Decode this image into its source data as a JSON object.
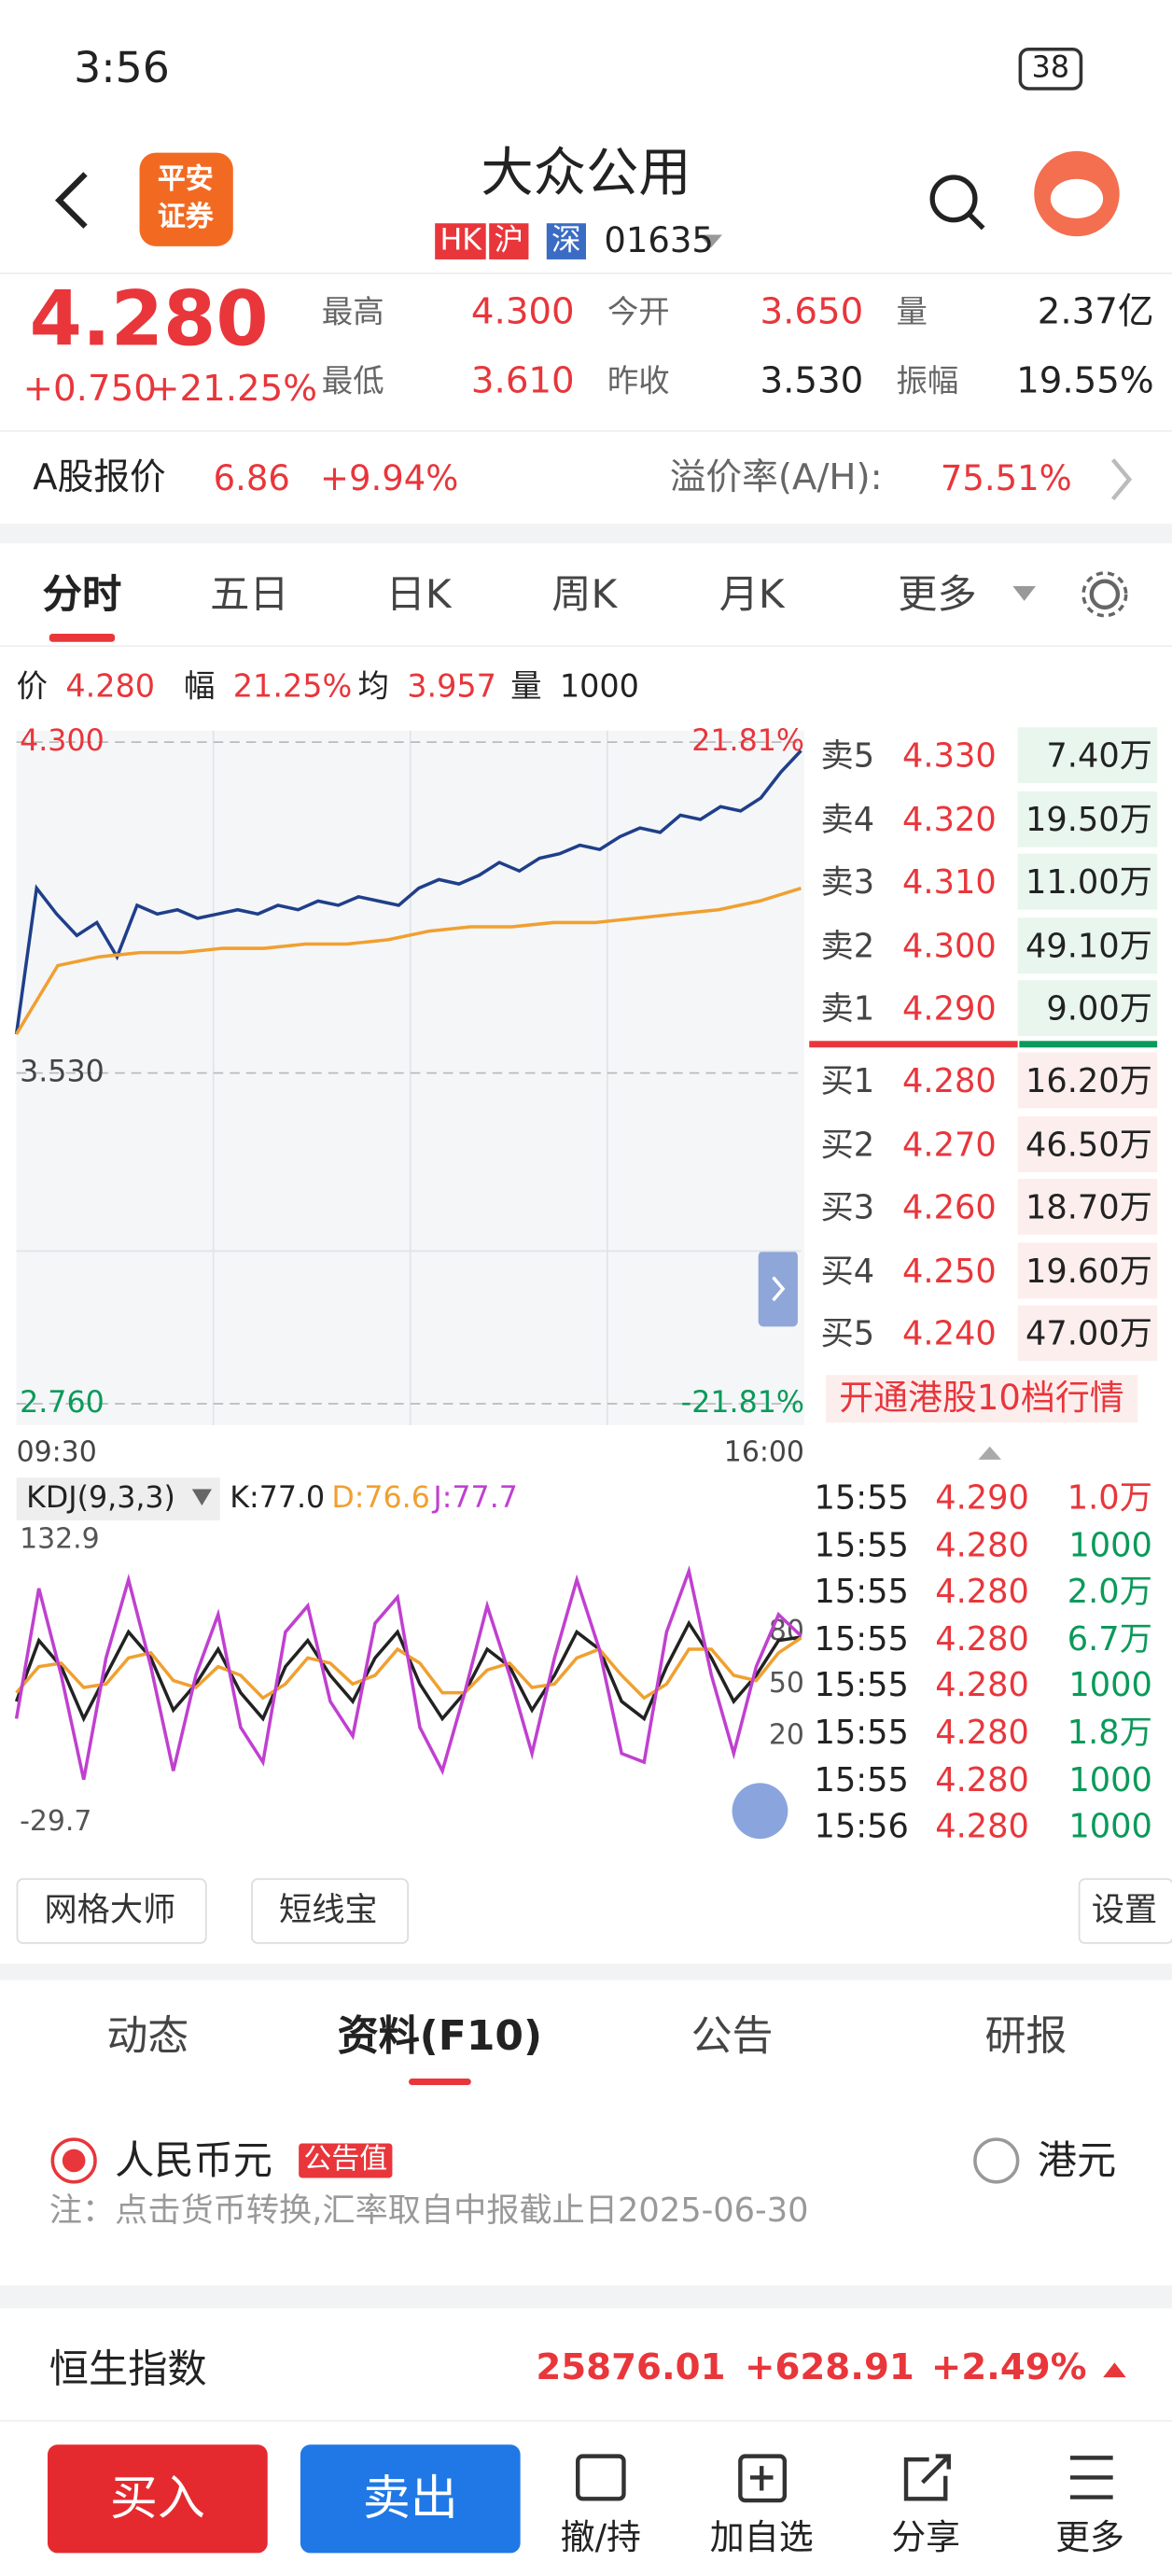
{
  "status_bar": {
    "time": "3:56",
    "battery": "38"
  },
  "header": {
    "title": "大众公用",
    "badges": [
      "HK",
      "沪",
      "深"
    ],
    "code": "01635",
    "logo": [
      "平安",
      "证券"
    ]
  },
  "quote": {
    "price": "4.280",
    "change": "+0.750",
    "change_pct": "+21.25%",
    "stats": [
      {
        "label": "最高",
        "value": "4.300"
      },
      {
        "label": "今开",
        "value": "3.650"
      },
      {
        "label": "量",
        "value": "2.37亿"
      },
      {
        "label": "最低",
        "value": "3.610"
      },
      {
        "label": "昨收",
        "value": "3.530"
      },
      {
        "label": "振幅",
        "value": "19.55%"
      }
    ]
  },
  "a_share": {
    "label": "A股报价",
    "price": "6.86",
    "change_pct": "+9.94%",
    "premium_label": "溢价率(A/H):",
    "premium": "75.51%"
  },
  "tabs": [
    "分时",
    "五日",
    "日K",
    "周K",
    "月K",
    "更多"
  ],
  "info_line": [
    {
      "label": "价",
      "value": "4.280"
    },
    {
      "label": "幅",
      "value": "21.25%"
    },
    {
      "label": "均",
      "value": "3.957"
    },
    {
      "label": "量",
      "value": "1000"
    }
  ],
  "chart_data": [
    {
      "type": "line",
      "ylim": [
        2.76,
        4.3
      ],
      "yticks": [
        {
          "value": 4.3,
          "label": "4.300"
        },
        {
          "value": 3.53,
          "label": "3.530"
        },
        {
          "value": 2.76,
          "label": "2.760"
        }
      ],
      "y2lim": [
        -21.81,
        21.81
      ],
      "y2ticks": [
        {
          "value": 21.81,
          "label": "21.81%"
        },
        {
          "value": -21.81,
          "label": "-21.81%"
        }
      ],
      "x_labels": [
        "09:30",
        "16:00"
      ],
      "series": [
        {
          "color": "#1f3f8a",
          "values": [
            3.62,
            3.96,
            3.9,
            3.85,
            3.88,
            3.8,
            3.92,
            3.9,
            3.91,
            3.89,
            3.9,
            3.91,
            3.9,
            3.92,
            3.91,
            3.93,
            3.92,
            3.94,
            3.93,
            3.92,
            3.96,
            3.98,
            3.97,
            3.99,
            4.02,
            4.0,
            4.03,
            4.04,
            4.06,
            4.05,
            4.08,
            4.1,
            4.09,
            4.13,
            4.12,
            4.15,
            4.14,
            4.17,
            4.23,
            4.28
          ]
        },
        {
          "color": "#f0a030",
          "values": [
            3.62,
            3.78,
            3.8,
            3.81,
            3.81,
            3.82,
            3.82,
            3.83,
            3.83,
            3.84,
            3.86,
            3.87,
            3.87,
            3.88,
            3.88,
            3.89,
            3.9,
            3.91,
            3.93,
            3.96
          ]
        }
      ]
    },
    {
      "type": "line",
      "title": "KDJ(9,3,3)",
      "ylim": [
        -29.7,
        132.9
      ],
      "yticks": [
        132.9,
        80,
        50,
        20,
        -29.7
      ],
      "series": [
        {
          "name": "K",
          "label": "K:77.0",
          "color": "#222222",
          "values": [
            40,
            75,
            60,
            30,
            55,
            80,
            65,
            35,
            50,
            70,
            45,
            30,
            60,
            75,
            55,
            40,
            65,
            80,
            50,
            30,
            45,
            70,
            60,
            35,
            55,
            80,
            70,
            40,
            30,
            60,
            85,
            65,
            40,
            55,
            75,
            77.0
          ]
        },
        {
          "name": "D",
          "label": "D:76.6",
          "color": "#f0a030",
          "values": [
            45,
            60,
            62,
            48,
            50,
            65,
            68,
            52,
            48,
            60,
            55,
            42,
            50,
            65,
            62,
            50,
            55,
            70,
            62,
            45,
            45,
            58,
            62,
            48,
            50,
            65,
            70,
            55,
            42,
            50,
            70,
            70,
            55,
            52,
            68,
            76.6
          ]
        },
        {
          "name": "J",
          "label": "J:77.7",
          "color": "#c040d0",
          "values": [
            30,
            105,
            55,
            -5,
            65,
            110,
            60,
            0,
            55,
            90,
            25,
            5,
            80,
            95,
            40,
            20,
            85,
            100,
            25,
            0,
            45,
            95,
            55,
            10,
            65,
            110,
            70,
            10,
            5,
            80,
            115,
            55,
            10,
            60,
            90,
            77.7
          ]
        }
      ]
    }
  ],
  "order_book": {
    "sell": [
      {
        "label": "卖5",
        "price": "4.330",
        "volume": "7.40万"
      },
      {
        "label": "卖4",
        "price": "4.320",
        "volume": "19.50万"
      },
      {
        "label": "卖3",
        "price": "4.310",
        "volume": "11.00万"
      },
      {
        "label": "卖2",
        "price": "4.300",
        "volume": "49.10万"
      },
      {
        "label": "卖1",
        "price": "4.290",
        "volume": "9.00万"
      }
    ],
    "buy": [
      {
        "label": "买1",
        "price": "4.280",
        "volume": "16.20万"
      },
      {
        "label": "买2",
        "price": "4.270",
        "volume": "46.50万"
      },
      {
        "label": "买3",
        "price": "4.260",
        "volume": "18.70万"
      },
      {
        "label": "买4",
        "price": "4.250",
        "volume": "19.60万"
      },
      {
        "label": "买5",
        "price": "4.240",
        "volume": "47.00万"
      }
    ],
    "promo": "开通港股10档行情"
  },
  "trades": [
    {
      "time": "15:55",
      "price": "4.290",
      "volume": "1.0万",
      "color": "#e8363b"
    },
    {
      "time": "15:55",
      "price": "4.280",
      "volume": "1000",
      "color": "#0a9a5a"
    },
    {
      "time": "15:55",
      "price": "4.280",
      "volume": "2.0万",
      "color": "#0a9a5a"
    },
    {
      "time": "15:55",
      "price": "4.280",
      "volume": "6.7万",
      "color": "#0a9a5a"
    },
    {
      "time": "15:55",
      "price": "4.280",
      "volume": "1000",
      "color": "#0a9a5a"
    },
    {
      "time": "15:55",
      "price": "4.280",
      "volume": "1.8万",
      "color": "#0a9a5a"
    },
    {
      "time": "15:55",
      "price": "4.280",
      "volume": "1000",
      "color": "#0a9a5a"
    },
    {
      "time": "15:56",
      "price": "4.280",
      "volume": "1000",
      "color": "#0a9a5a"
    }
  ],
  "tools": [
    "网格大师",
    "短线宝"
  ],
  "settings": "设置",
  "section_tabs": [
    "动态",
    "资料(F10)",
    "公告",
    "研报"
  ],
  "currency": {
    "rmb": "人民币元",
    "tag": "公告值",
    "hkd": "港元",
    "note": "注：点击货币转换,汇率取自中报截止日2025-06-30"
  },
  "index": {
    "name": "恒生指数",
    "value": "25876.01",
    "change": "+628.91",
    "change_pct": "+2.49%"
  },
  "bottom": {
    "buy": "买入",
    "sell": "卖出",
    "items": [
      "撤/持",
      "加自选",
      "分享",
      "更多"
    ]
  }
}
